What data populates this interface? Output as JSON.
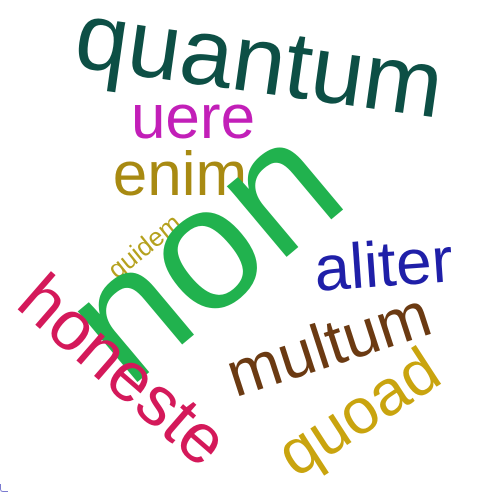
{
  "cloud": {
    "words": [
      {
        "id": "quantum",
        "text": "quantum",
        "color": "#0d4f45"
      },
      {
        "id": "uere",
        "text": "uere",
        "color": "#c21fb8"
      },
      {
        "id": "enim",
        "text": "enim",
        "color": "#a88a12"
      },
      {
        "id": "quidem",
        "text": "quidem",
        "color": "#b5a11e"
      },
      {
        "id": "non",
        "text": "non",
        "color": "#21b24e"
      },
      {
        "id": "aliter",
        "text": "aliter",
        "color": "#1f1fa8"
      },
      {
        "id": "honeste",
        "text": "honeste",
        "color": "#d4195a"
      },
      {
        "id": "multum",
        "text": "multum",
        "color": "#6b3a12"
      },
      {
        "id": "quoad",
        "text": "quoad",
        "color": "#c9a40e"
      }
    ]
  }
}
